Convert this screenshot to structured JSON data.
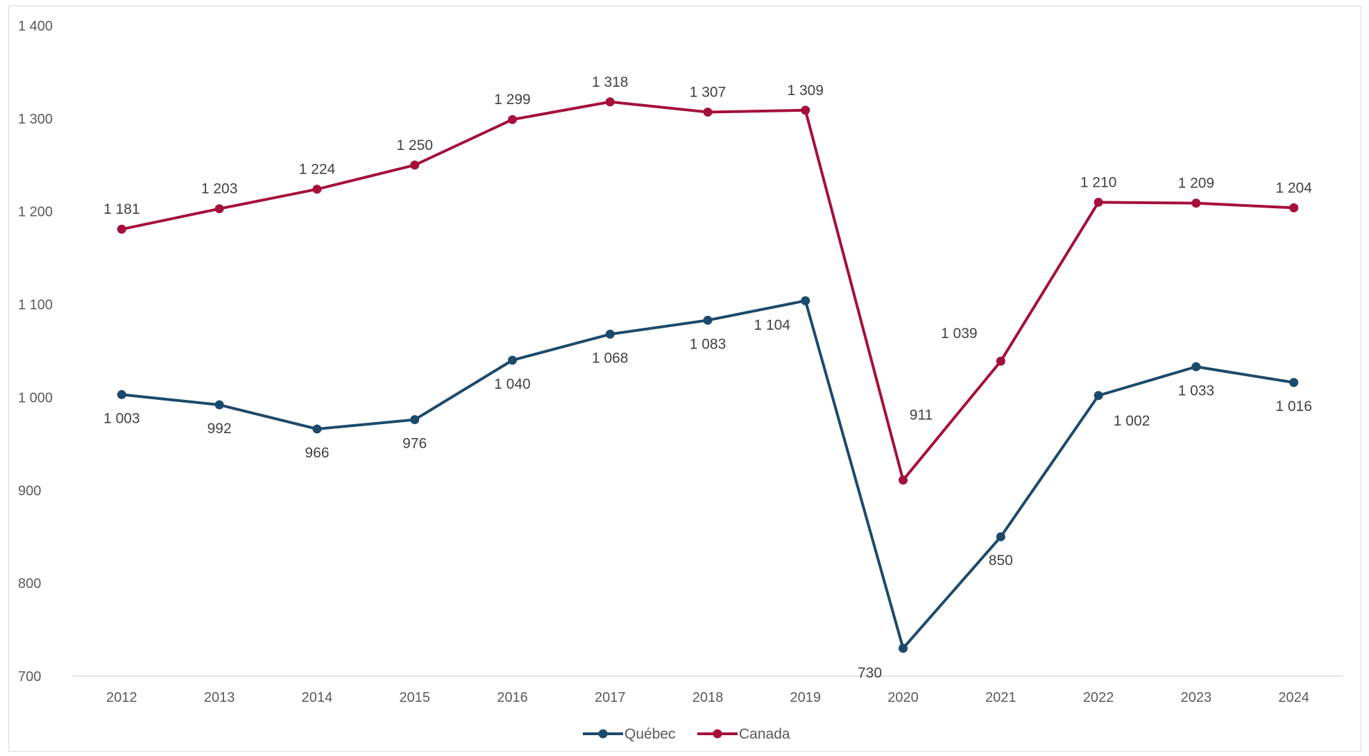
{
  "colors": {
    "quebec": "#1b4a6b",
    "canada": "#a50f3a",
    "axis": "#d9d9d9",
    "tick_text": "#595959",
    "label_text": "#404040"
  },
  "chart_data": {
    "type": "line",
    "title": "",
    "xlabel": "",
    "ylabel": "",
    "categories": [
      "2012",
      "2013",
      "2014",
      "2015",
      "2016",
      "2017",
      "2018",
      "2019",
      "2020",
      "2021",
      "2022",
      "2023",
      "2024"
    ],
    "ylim": [
      700,
      1400
    ],
    "yticks": [
      700,
      800,
      900,
      1000,
      1100,
      1200,
      1300,
      1400
    ],
    "ytick_labels": [
      "700",
      "800",
      "900",
      "1 000",
      "1 100",
      "1 200",
      "1 300",
      "1 400"
    ],
    "grid": false,
    "legend_position": "bottom",
    "series": [
      {
        "name": "Québec",
        "color": "#1b4a6b",
        "values": [
          1003,
          992,
          966,
          976,
          1040,
          1068,
          1083,
          1104,
          730,
          850,
          1002,
          1033,
          1016
        ],
        "labels": [
          "1 003",
          "992",
          "966",
          "976",
          "1 040",
          "1 068",
          "1 083",
          "1 104",
          "730",
          "850",
          "1 002",
          "1 033",
          "1 016"
        ]
      },
      {
        "name": "Canada",
        "color": "#a50f3a",
        "values": [
          1181,
          1203,
          1224,
          1250,
          1299,
          1318,
          1307,
          1309,
          911,
          1039,
          1210,
          1209,
          1204
        ],
        "labels": [
          "1 181",
          "1 203",
          "1 224",
          "1 250",
          "1 299",
          "1 318",
          "1 307",
          "1 309",
          "911",
          "1 039",
          "1 210",
          "1 209",
          "1 204"
        ]
      }
    ]
  }
}
